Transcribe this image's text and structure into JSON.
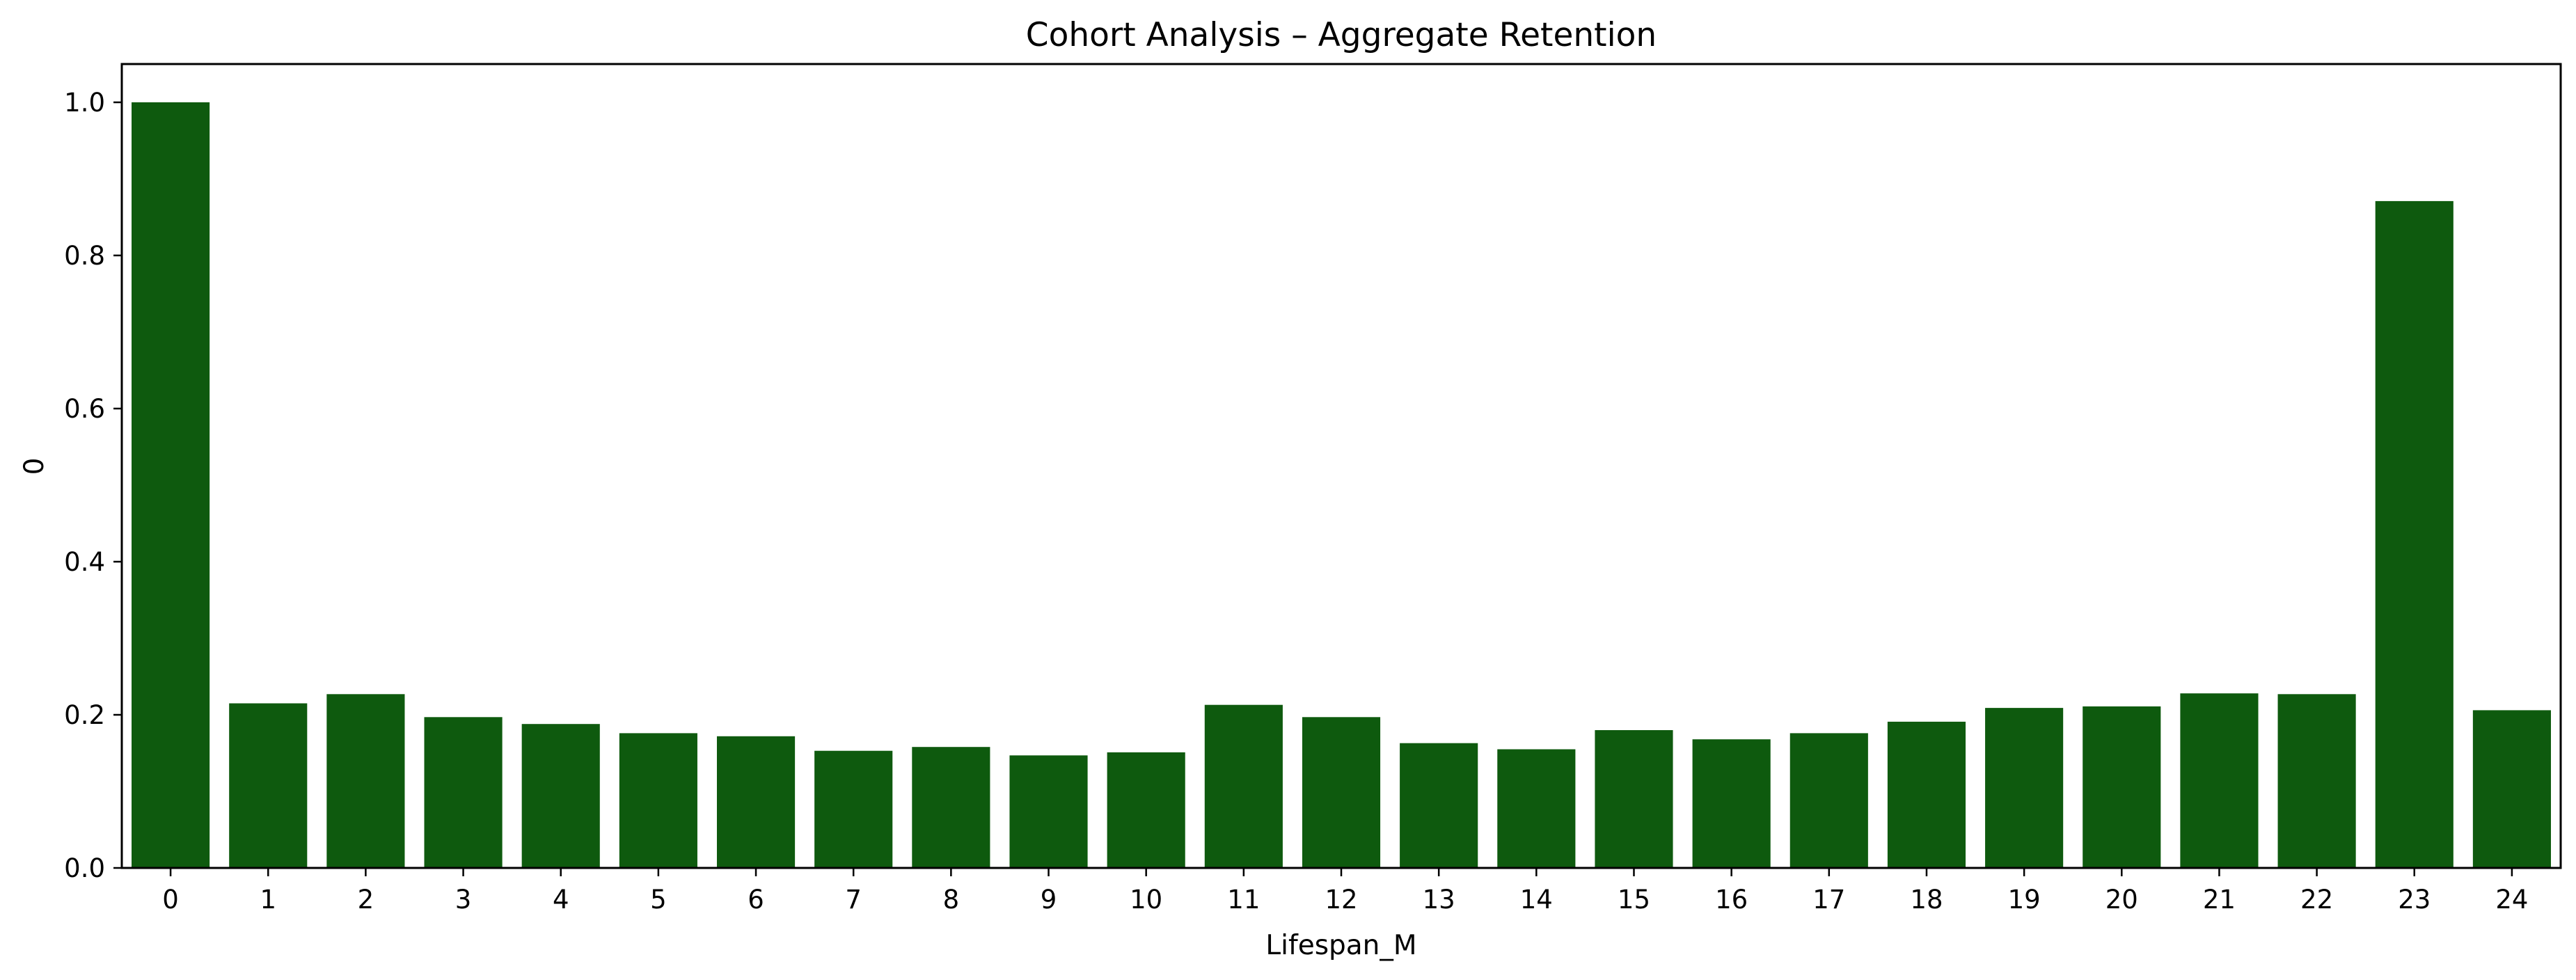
{
  "chart_data": {
    "type": "bar",
    "title": "Cohort Analysis – Aggregate Retention",
    "xlabel": "Lifespan_M",
    "ylabel": "0",
    "categories": [
      "0",
      "1",
      "2",
      "3",
      "4",
      "5",
      "6",
      "7",
      "8",
      "9",
      "10",
      "11",
      "12",
      "13",
      "14",
      "15",
      "16",
      "17",
      "18",
      "19",
      "20",
      "21",
      "22",
      "23",
      "24"
    ],
    "values": [
      1.0,
      0.215,
      0.227,
      0.197,
      0.188,
      0.176,
      0.172,
      0.153,
      0.158,
      0.147,
      0.151,
      0.213,
      0.197,
      0.163,
      0.155,
      0.18,
      0.168,
      0.176,
      0.191,
      0.209,
      0.211,
      0.228,
      0.227,
      0.871,
      0.206
    ],
    "ylim": [
      0,
      1.05
    ],
    "yticks": [
      0.0,
      0.2,
      0.4,
      0.6,
      0.8,
      1.0
    ],
    "ytick_labels": [
      "0.0",
      "0.2",
      "0.4",
      "0.6",
      "0.8",
      "1.0"
    ],
    "grid": false,
    "bar_color": "#0e5a0e"
  }
}
